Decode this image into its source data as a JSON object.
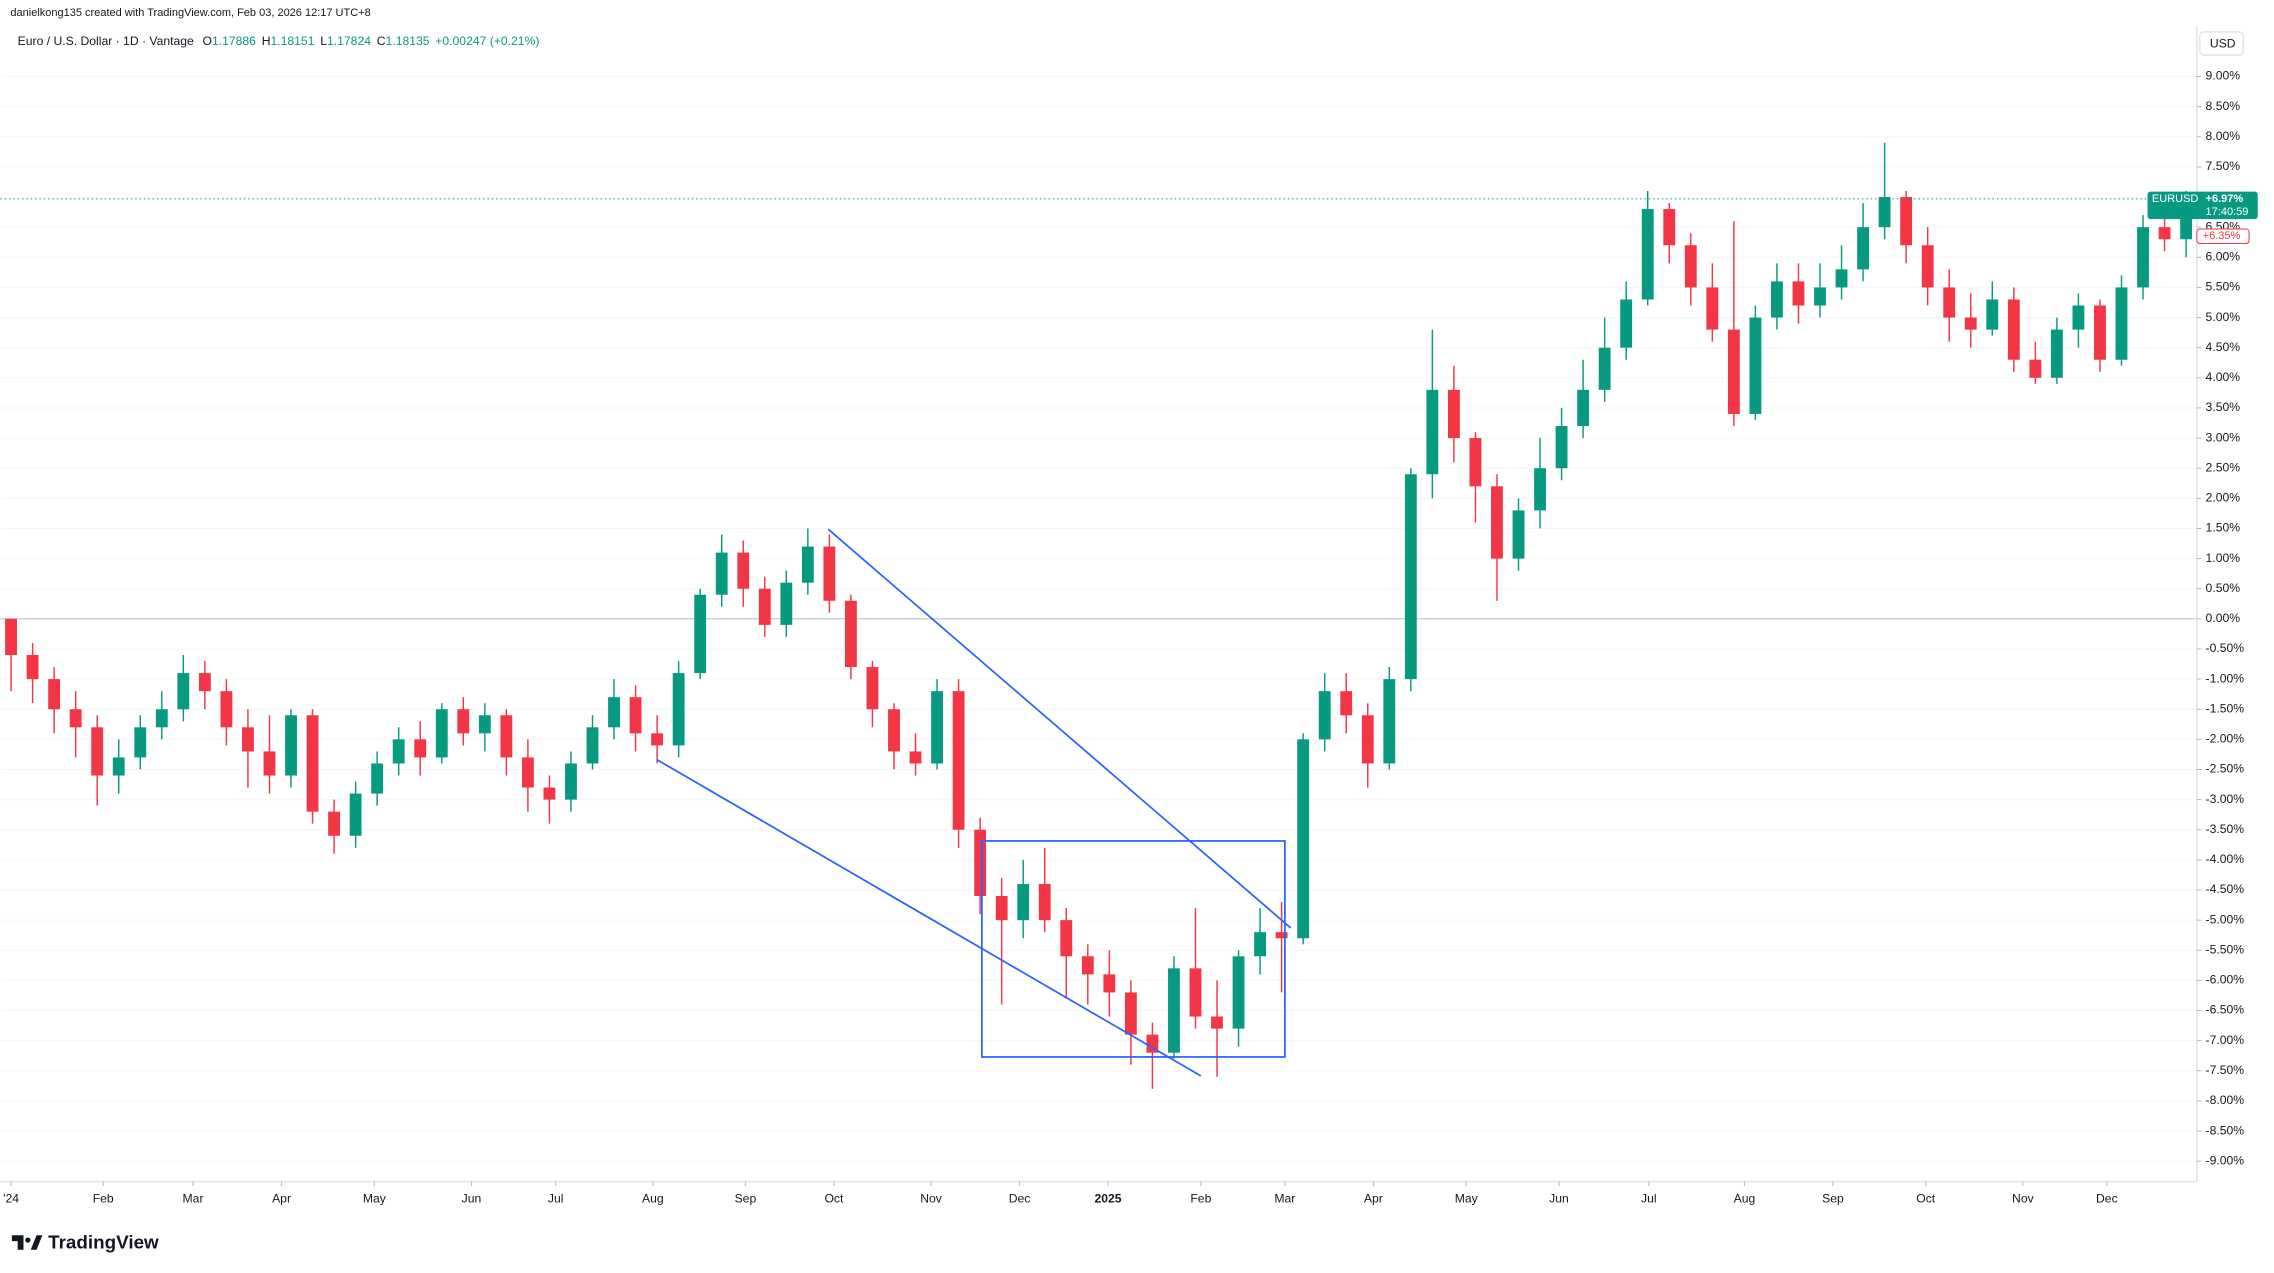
{
  "header": {
    "author_line": "danielkong135 created with TradingView.com, Feb 03, 2026 12:17 UTC+8",
    "symbol": "Euro / U.S. Dollar · 1D · Vantage",
    "ohlc": [
      {
        "key": "O",
        "value": "1.17886"
      },
      {
        "key": "H",
        "value": "1.18151"
      },
      {
        "key": "L",
        "value": "1.17824"
      },
      {
        "key": "C",
        "value": "1.18135"
      }
    ],
    "change": "+0.00247 (+0.21%)"
  },
  "chart_data": {
    "type": "candlestick",
    "up_color": "#089981",
    "down_color": "#f23645",
    "grid": true,
    "y_unit": "USD",
    "price_tag": {
      "symbol": "EURUSD",
      "value_label": "+6.97%",
      "countdown": "17:40:59"
    },
    "secondary_tag": {
      "value": 6.35,
      "label": "+6.35%"
    },
    "xlim": [
      -0.5,
      101.5
    ],
    "xticks": [
      {
        "value": 0,
        "label": "'24"
      },
      {
        "value": 4.28,
        "label": "Feb"
      },
      {
        "value": 8.45,
        "label": "Mar"
      },
      {
        "value": 12.56,
        "label": "Apr"
      },
      {
        "value": 16.87,
        "label": "May"
      },
      {
        "value": 21.38,
        "label": "Jun"
      },
      {
        "value": 25.29,
        "label": "Jul"
      },
      {
        "value": 29.8,
        "label": "Aug"
      },
      {
        "value": 34.1,
        "label": "Sep"
      },
      {
        "value": 38.21,
        "label": "Oct"
      },
      {
        "value": 42.72,
        "label": "Nov"
      },
      {
        "value": 46.83,
        "label": "Dec"
      },
      {
        "value": 50.94,
        "label": "2025"
      },
      {
        "value": 55.25,
        "label": "Feb"
      },
      {
        "value": 59.15,
        "label": "Mar"
      },
      {
        "value": 63.26,
        "label": "Apr"
      },
      {
        "value": 67.57,
        "label": "May"
      },
      {
        "value": 71.88,
        "label": "Jun"
      },
      {
        "value": 76.05,
        "label": "Jul"
      },
      {
        "value": 80.49,
        "label": "Aug"
      },
      {
        "value": 84.6,
        "label": "Sep"
      },
      {
        "value": 88.91,
        "label": "Oct"
      },
      {
        "value": 93.42,
        "label": "Nov"
      },
      {
        "value": 97.32,
        "label": "Dec"
      }
    ],
    "ylim": [
      -9.34,
      10.27
    ],
    "yticks": [
      {
        "value": -9,
        "label": "-9.00%"
      },
      {
        "value": -8.5,
        "label": "-8.50%"
      },
      {
        "value": -8,
        "label": "-8.00%"
      },
      {
        "value": -7.5,
        "label": "-7.50%"
      },
      {
        "value": -7,
        "label": "-7.00%"
      },
      {
        "value": -6.5,
        "label": "-6.50%"
      },
      {
        "value": -6,
        "label": "-6.00%"
      },
      {
        "value": -5.5,
        "label": "-5.50%"
      },
      {
        "value": -5,
        "label": "-5.00%"
      },
      {
        "value": -4.5,
        "label": "-4.50%"
      },
      {
        "value": -4,
        "label": "-4.00%"
      },
      {
        "value": -3.5,
        "label": "-3.50%"
      },
      {
        "value": -3,
        "label": "-3.00%"
      },
      {
        "value": -2.5,
        "label": "-2.50%"
      },
      {
        "value": -2,
        "label": "-2.00%"
      },
      {
        "value": -1.5,
        "label": "-1.50%"
      },
      {
        "value": -1,
        "label": "-1.00%"
      },
      {
        "value": -0.5,
        "label": "-0.50%"
      },
      {
        "value": 0,
        "label": "0.00%"
      },
      {
        "value": 0.5,
        "label": "0.50%"
      },
      {
        "value": 1,
        "label": "1.00%"
      },
      {
        "value": 1.5,
        "label": "1.50%"
      },
      {
        "value": 2,
        "label": "2.00%"
      },
      {
        "value": 2.5,
        "label": "2.50%"
      },
      {
        "value": 3,
        "label": "3.00%"
      },
      {
        "value": 3.5,
        "label": "3.50%"
      },
      {
        "value": 4,
        "label": "4.00%"
      },
      {
        "value": 4.5,
        "label": "4.50%"
      },
      {
        "value": 5,
        "label": "5.00%"
      },
      {
        "value": 5.5,
        "label": "5.50%"
      },
      {
        "value": 6,
        "label": "6.00%"
      },
      {
        "value": 6.5,
        "label": "6.50%"
      },
      {
        "value": 7,
        "label": "7.00%"
      },
      {
        "value": 7.5,
        "label": "7.50%"
      },
      {
        "value": 8,
        "label": "8.00%"
      },
      {
        "value": 8.5,
        "label": "8.50%"
      },
      {
        "value": 9,
        "label": "9.00%"
      }
    ],
    "open": [
      0,
      -0.6,
      -1.0,
      -1.5,
      -1.8,
      -2.6,
      -2.3,
      -1.8,
      -1.5,
      -0.9,
      -1.2,
      -1.8,
      -2.2,
      -2.6,
      -1.6,
      -3.2,
      -3.6,
      -2.9,
      -2.4,
      -2.0,
      -2.3,
      -1.5,
      -1.9,
      -1.6,
      -2.3,
      -2.8,
      -3.0,
      -2.4,
      -1.8,
      -1.3,
      -1.9,
      -2.1,
      -0.9,
      0.4,
      1.1,
      0.5,
      -0.1,
      0.6,
      1.2,
      0.3,
      -0.8,
      -1.5,
      -2.2,
      -2.4,
      -1.2,
      -3.5,
      -4.6,
      -5.0,
      -4.4,
      -5.0,
      -5.6,
      -5.9,
      -6.2,
      -6.9,
      -7.2,
      -5.8,
      -6.6,
      -6.8,
      -5.6,
      -5.2,
      -5.3,
      -2.0,
      -1.2,
      -1.6,
      -2.4,
      -1.0,
      2.4,
      3.8,
      3.0,
      2.2,
      1.0,
      1.8,
      2.5,
      3.2,
      3.8,
      4.5,
      5.3,
      6.8,
      6.2,
      5.5,
      4.8,
      3.4,
      5.0,
      5.6,
      5.2,
      5.5,
      5.8,
      6.5,
      7.0,
      6.2,
      5.5,
      5.0,
      4.8,
      5.3,
      4.3,
      4.0,
      4.8,
      5.2,
      4.3,
      5.5,
      6.5,
      6.3
    ],
    "high": [
      0.0,
      -0.4,
      -0.8,
      -1.2,
      -1.6,
      -2.0,
      -1.6,
      -1.2,
      -0.6,
      -0.7,
      -1.0,
      -1.5,
      -1.6,
      -1.5,
      -1.5,
      -3.0,
      -2.7,
      -2.2,
      -1.8,
      -1.7,
      -1.4,
      -1.3,
      -1.4,
      -1.5,
      -2.0,
      -2.6,
      -2.2,
      -1.6,
      -1.0,
      -1.1,
      -1.6,
      -0.7,
      0.5,
      1.4,
      1.3,
      0.7,
      0.8,
      1.5,
      1.4,
      0.4,
      -0.7,
      -1.4,
      -1.9,
      -1.0,
      -1.0,
      -3.3,
      -4.3,
      -4.0,
      -3.8,
      -4.8,
      -5.4,
      -5.5,
      -6.0,
      -6.7,
      -5.6,
      -4.8,
      -6.0,
      -5.5,
      -4.8,
      -4.7,
      -1.9,
      -0.9,
      -0.9,
      -1.4,
      -0.8,
      2.5,
      4.8,
      4.2,
      3.1,
      2.4,
      2.0,
      3.0,
      3.5,
      4.3,
      5.0,
      5.6,
      7.1,
      6.9,
      6.4,
      5.9,
      6.6,
      5.2,
      5.9,
      5.9,
      5.9,
      6.2,
      6.9,
      7.9,
      7.1,
      6.5,
      5.8,
      5.4,
      5.6,
      5.5,
      4.6,
      5.0,
      5.4,
      5.3,
      5.7,
      6.7,
      7.0,
      7.1
    ],
    "low": [
      -1.2,
      -1.4,
      -1.9,
      -2.3,
      -3.1,
      -2.9,
      -2.5,
      -2.0,
      -1.7,
      -1.5,
      -2.1,
      -2.8,
      -2.9,
      -2.8,
      -3.4,
      -3.9,
      -3.8,
      -3.1,
      -2.6,
      -2.6,
      -2.4,
      -2.1,
      -2.2,
      -2.6,
      -3.2,
      -3.4,
      -3.2,
      -2.5,
      -2.0,
      -2.2,
      -2.4,
      -2.3,
      -1.0,
      0.2,
      0.2,
      -0.3,
      -0.3,
      0.4,
      0.1,
      -1.0,
      -1.8,
      -2.5,
      -2.6,
      -2.5,
      -3.8,
      -4.9,
      -6.4,
      -5.3,
      -5.2,
      -6.3,
      -6.4,
      -6.6,
      -7.4,
      -7.8,
      -7.3,
      -6.8,
      -7.6,
      -7.1,
      -5.9,
      -6.2,
      -5.4,
      -2.2,
      -1.9,
      -2.8,
      -2.5,
      -1.2,
      2.0,
      2.6,
      1.6,
      0.3,
      0.8,
      1.5,
      2.3,
      3.0,
      3.6,
      4.3,
      5.2,
      5.9,
      5.2,
      4.6,
      3.2,
      3.3,
      4.8,
      4.9,
      5.0,
      5.3,
      5.6,
      6.3,
      5.9,
      5.2,
      4.6,
      4.5,
      4.7,
      4.1,
      3.9,
      3.9,
      4.5,
      4.1,
      4.2,
      5.3,
      6.1,
      6.0
    ],
    "close": [
      -0.6,
      -1.0,
      -1.5,
      -1.8,
      -2.6,
      -2.3,
      -1.8,
      -1.5,
      -0.9,
      -1.2,
      -1.8,
      -2.2,
      -2.6,
      -1.6,
      -3.2,
      -3.6,
      -2.9,
      -2.4,
      -2.0,
      -2.3,
      -1.5,
      -1.9,
      -1.6,
      -2.3,
      -2.8,
      -3.0,
      -2.4,
      -1.8,
      -1.3,
      -1.9,
      -2.1,
      -0.9,
      0.4,
      1.1,
      0.5,
      -0.1,
      0.6,
      1.2,
      0.3,
      -0.8,
      -1.5,
      -2.2,
      -2.4,
      -1.2,
      -3.5,
      -4.6,
      -5.0,
      -4.4,
      -5.0,
      -5.6,
      -5.9,
      -6.2,
      -6.9,
      -7.2,
      -5.8,
      -6.6,
      -6.8,
      -5.6,
      -5.2,
      -5.3,
      -2.0,
      -1.2,
      -1.6,
      -2.4,
      -1.0,
      2.4,
      3.8,
      3.0,
      2.2,
      1.0,
      1.8,
      2.5,
      3.2,
      3.8,
      4.5,
      5.3,
      6.8,
      6.2,
      5.5,
      4.8,
      3.4,
      5.0,
      5.6,
      5.2,
      5.5,
      5.8,
      6.5,
      7.0,
      6.2,
      5.5,
      5.0,
      4.8,
      5.3,
      4.3,
      4.0,
      4.8,
      5.2,
      4.3,
      5.5,
      6.5,
      6.3,
      6.97
    ]
  },
  "footer": {
    "brand": "TradingView"
  }
}
